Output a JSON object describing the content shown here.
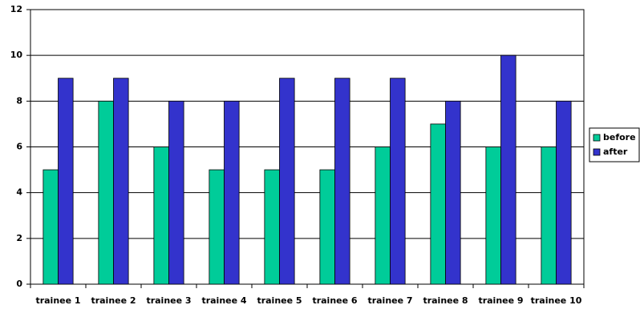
{
  "chart_data": {
    "type": "bar",
    "categories": [
      "trainee 1",
      "trainee 2",
      "trainee 3",
      "trainee 4",
      "trainee 5",
      "trainee 6",
      "trainee 7",
      "trainee 8",
      "trainee 9",
      "trainee 10"
    ],
    "series": [
      {
        "name": "before",
        "color": "#00cc99",
        "values": [
          5,
          8,
          6,
          5,
          5,
          5,
          6,
          7,
          6,
          6
        ]
      },
      {
        "name": "after",
        "color": "#3333cc",
        "values": [
          9,
          9,
          8,
          8,
          9,
          9,
          9,
          8,
          10,
          8
        ]
      }
    ],
    "ylim": [
      0,
      12
    ],
    "yticks": [
      0,
      2,
      4,
      6,
      8,
      10,
      12
    ],
    "grid": true,
    "legend": "right"
  }
}
